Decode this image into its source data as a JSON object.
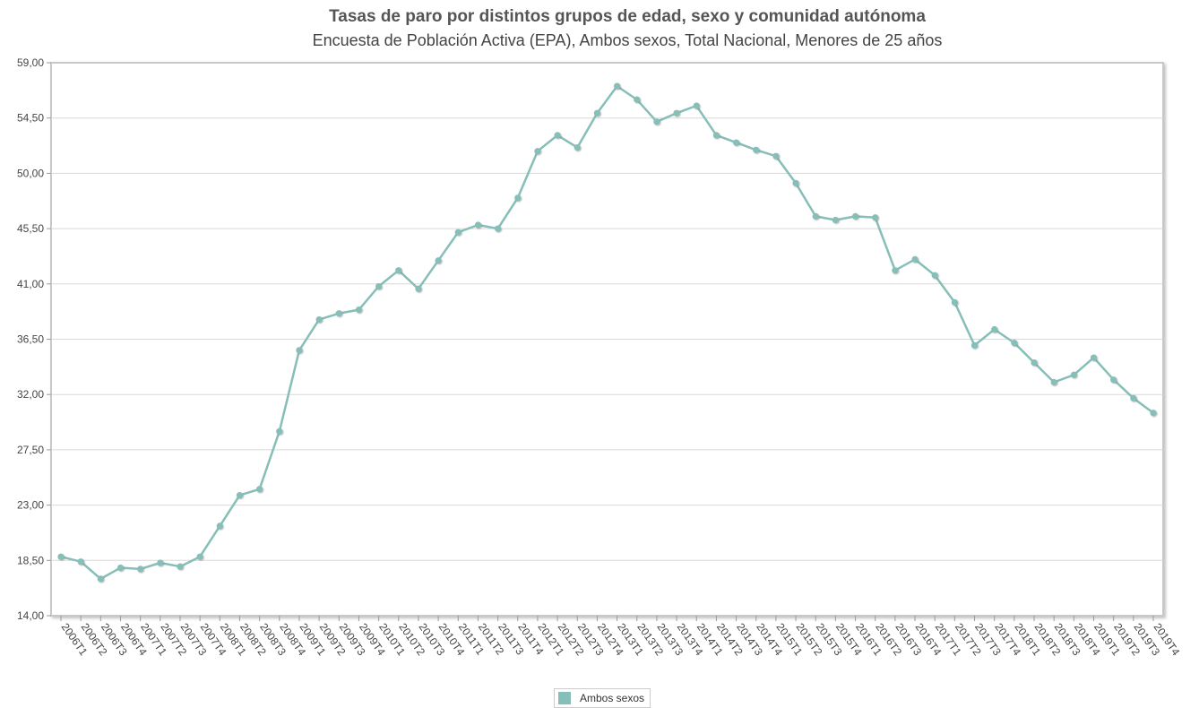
{
  "chart_data": {
    "type": "line",
    "title": "Tasas de paro por distintos grupos de edad, sexo y comunidad autónoma",
    "subtitle": "Encuesta de Población Activa (EPA), Ambos sexos, Total Nacional, Menores de 25 años",
    "xlabel": "",
    "ylabel": "",
    "ylim": [
      14.0,
      59.0
    ],
    "yticks": [
      "14,00",
      "18,50",
      "23,00",
      "27,50",
      "32,00",
      "36,50",
      "41,00",
      "45,50",
      "50,00",
      "54,50",
      "59,00"
    ],
    "grid": true,
    "legend_position": "bottom-center",
    "color": "#86beb8",
    "categories": [
      "2006T1",
      "2006T2",
      "2006T3",
      "2006T4",
      "2007T1",
      "2007T2",
      "2007T3",
      "2007T4",
      "2008T1",
      "2008T2",
      "2008T3",
      "2008T4",
      "2009T1",
      "2009T2",
      "2009T3",
      "2009T4",
      "2010T1",
      "2010T2",
      "2010T3",
      "2010T4",
      "2011T1",
      "2011T2",
      "2011T3",
      "2011T4",
      "2012T1",
      "2012T2",
      "2012T3",
      "2012T4",
      "2013T1",
      "2013T2",
      "2013T3",
      "2013T4",
      "2014T1",
      "2014T2",
      "2014T3",
      "2014T4",
      "2015T1",
      "2015T2",
      "2015T3",
      "2015T4",
      "2016T1",
      "2016T2",
      "2016T3",
      "2016T4",
      "2017T1",
      "2017T2",
      "2017T3",
      "2017T4",
      "2018T1",
      "2018T2",
      "2018T3",
      "2018T4",
      "2019T1",
      "2019T2",
      "2019T3",
      "2019T4"
    ],
    "series": [
      {
        "name": "Ambos sexos",
        "values": [
          18.8,
          18.4,
          17.0,
          17.9,
          17.8,
          18.3,
          18.0,
          18.8,
          21.3,
          23.8,
          24.3,
          29.0,
          35.6,
          38.1,
          38.6,
          38.9,
          40.8,
          42.1,
          40.6,
          42.9,
          45.2,
          45.8,
          45.5,
          48.0,
          51.8,
          53.1,
          52.1,
          54.9,
          57.1,
          56.0,
          54.2,
          54.9,
          55.5,
          53.1,
          52.5,
          51.9,
          51.4,
          49.2,
          46.5,
          46.2,
          46.5,
          46.4,
          42.1,
          43.0,
          41.7,
          39.5,
          36.0,
          37.3,
          36.2,
          34.6,
          33.0,
          33.6,
          35.0,
          33.2,
          31.7,
          30.5
        ]
      }
    ]
  }
}
